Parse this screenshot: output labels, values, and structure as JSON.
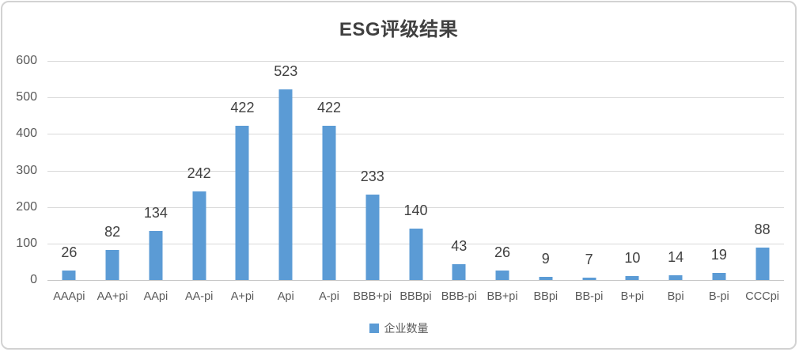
{
  "chart": {
    "title": "ESG评级结果",
    "legend_label": "企业数量"
  },
  "chart_data": {
    "type": "bar",
    "title": "ESG评级结果",
    "categories": [
      "AAApi",
      "AA+pi",
      "AApi",
      "AA-pi",
      "A+pi",
      "Api",
      "A-pi",
      "BBB+pi",
      "BBBpi",
      "BBB-pi",
      "BB+pi",
      "BBpi",
      "BB-pi",
      "B+pi",
      "Bpi",
      "B-pi",
      "CCCpi"
    ],
    "series": [
      {
        "name": "企业数量",
        "values": [
          26,
          82,
          134,
          242,
          422,
          523,
          422,
          233,
          140,
          43,
          26,
          9,
          7,
          10,
          14,
          19,
          88
        ]
      }
    ],
    "xlabel": "",
    "ylabel": "",
    "ylim": [
      0,
      600
    ],
    "yticks": [
      0,
      100,
      200,
      300,
      400,
      500,
      600
    ],
    "grid": true,
    "data_labels": true,
    "legend_position": "bottom"
  },
  "colors": {
    "bar": "#5B9BD5",
    "grid_line": "#D9D9D9",
    "axis_line": "#C6C6C6",
    "axis_text": "#595959",
    "value_label_text": "#404040",
    "title_text": "#404040",
    "frame_border": "#D2D2D2",
    "background": "#FFFFFF"
  }
}
